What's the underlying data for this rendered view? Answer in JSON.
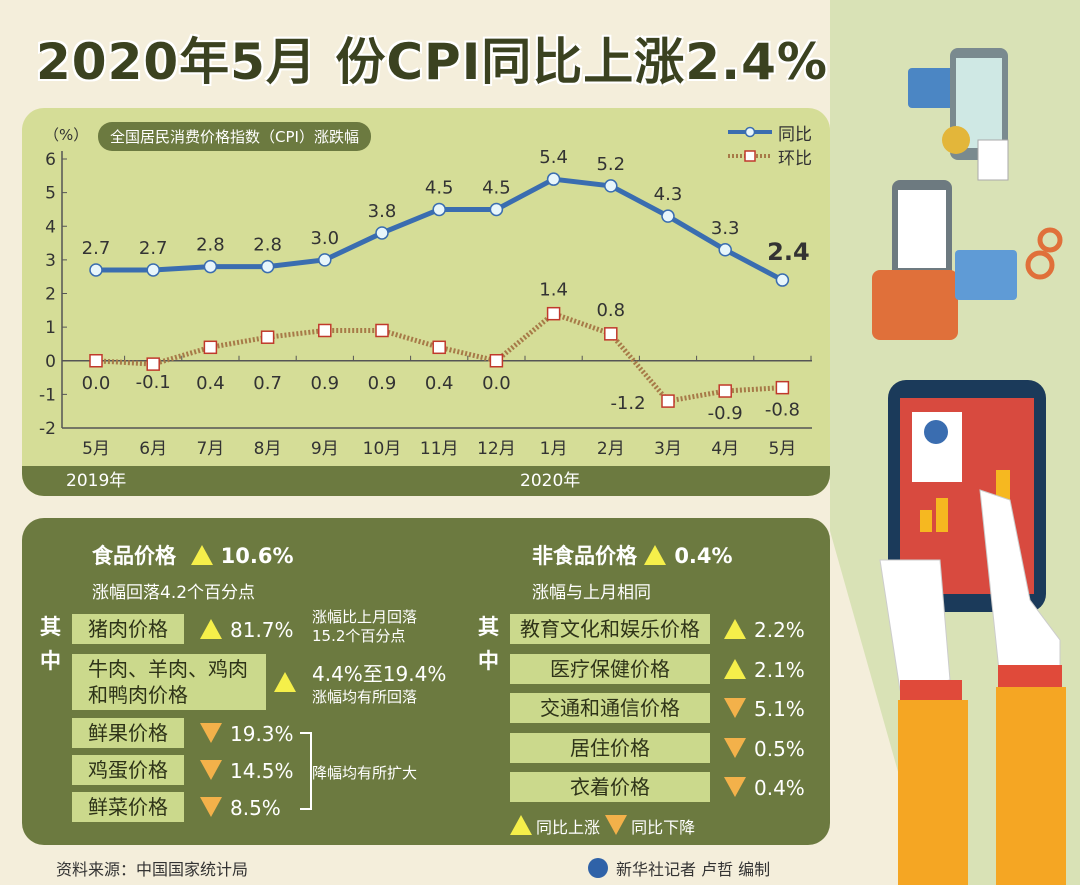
{
  "title": "2020年5月 份CPI同比上涨2.4%",
  "chart_data": {
    "type": "line",
    "title": "全国居民消费价格指数（CPI）涨跌幅",
    "ylabel": "（%）",
    "categories": [
      "5月",
      "6月",
      "7月",
      "8月",
      "9月",
      "10月",
      "11月",
      "12月",
      "1月",
      "2月",
      "3月",
      "4月",
      "5月"
    ],
    "year_labels": [
      "2019年",
      "2020年"
    ],
    "ylim": [
      -2,
      6
    ],
    "yticks": [
      -2,
      -1,
      0,
      1,
      2,
      3,
      4,
      5,
      6
    ],
    "series": [
      {
        "name": "同比",
        "color": "#3a6db0",
        "values": [
          2.7,
          2.7,
          2.8,
          2.8,
          3.0,
          3.8,
          4.5,
          4.5,
          5.4,
          5.2,
          4.3,
          3.3,
          2.4
        ]
      },
      {
        "name": "环比",
        "color": "#a77a48",
        "values": [
          0.0,
          -0.1,
          0.4,
          0.7,
          0.9,
          0.9,
          0.4,
          0.0,
          1.4,
          0.8,
          -1.2,
          -0.9,
          -0.8
        ]
      }
    ],
    "legend": "top-right",
    "grid": false
  },
  "food": {
    "title": "食品价格",
    "value": "10.6%",
    "note": "涨幅回落4.2个百分点",
    "qizhong": [
      "其",
      "中"
    ],
    "items": [
      {
        "label": "猪肉价格",
        "dir": "up",
        "value": "81.7%"
      },
      {
        "label": "牛肉、羊肉、鸡肉和鸭肉价格",
        "dir": "up",
        "value": ""
      },
      {
        "label": "鲜果价格",
        "dir": "down",
        "value": "19.3%"
      },
      {
        "label": "鸡蛋价格",
        "dir": "down",
        "value": "14.5%"
      },
      {
        "label": "鲜菜价格",
        "dir": "down",
        "value": "8.5%"
      }
    ],
    "pork_note1": "涨幅比上月回落",
    "pork_note2": "15.2个百分点",
    "meat_range": "4.4%至19.4%",
    "meat_note": "涨幅均有所回落",
    "down_note": "降幅均有所扩大"
  },
  "nonfood": {
    "title": "非食品价格",
    "value": "0.4%",
    "note": "涨幅与上月相同",
    "qizhong": [
      "其",
      "中"
    ],
    "items": [
      {
        "label": "教育文化和娱乐价格",
        "dir": "up",
        "value": "2.2%"
      },
      {
        "label": "医疗保健价格",
        "dir": "up",
        "value": "2.1%"
      },
      {
        "label": "交通和通信价格",
        "dir": "down",
        "value": "5.1%"
      },
      {
        "label": "居住价格",
        "dir": "down",
        "value": "0.5%"
      },
      {
        "label": "衣着价格",
        "dir": "down",
        "value": "0.4%"
      }
    ],
    "legend_up": "同比上涨",
    "legend_down": "同比下降"
  },
  "footer": {
    "source": "资料来源：中国国家统计局",
    "credit": "新华社记者 卢哲 编制"
  },
  "colors": {
    "up": "#f5ef4a",
    "down": "#f3b14a",
    "panel": "#6c7a40",
    "chart_bg": "#d5dd97"
  }
}
